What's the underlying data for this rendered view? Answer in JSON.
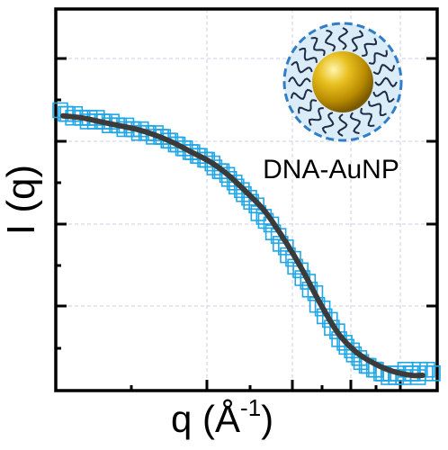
{
  "chart_data": {
    "type": "scatter",
    "xlabel": "q (Å",
    "xlabel_superscript": "-1",
    "xlabel_close": ")",
    "ylabel": "I (q)",
    "tick_labels_shown": false,
    "grid": true,
    "annotation": "DNA-AuNP",
    "series": [
      {
        "kind": "points",
        "marker": "open-square",
        "color": "#22a7e6",
        "x": [
          0.0,
          0.02,
          0.04,
          0.06,
          0.08,
          0.1,
          0.12,
          0.14,
          0.16,
          0.18,
          0.2,
          0.22,
          0.24,
          0.26,
          0.28,
          0.3,
          0.32,
          0.34,
          0.36,
          0.38,
          0.4,
          0.42,
          0.44,
          0.46,
          0.48,
          0.5,
          0.52,
          0.54,
          0.56,
          0.58,
          0.6,
          0.62,
          0.64,
          0.66,
          0.68,
          0.7,
          0.72,
          0.74,
          0.76,
          0.78,
          0.8,
          0.82,
          0.84,
          0.86,
          0.88,
          0.9,
          0.92,
          0.94,
          0.96,
          0.98,
          1.0
        ],
        "y": [
          0.73,
          0.72,
          0.72,
          0.71,
          0.71,
          0.71,
          0.7,
          0.7,
          0.69,
          0.69,
          0.68,
          0.68,
          0.67,
          0.67,
          0.66,
          0.65,
          0.64,
          0.63,
          0.62,
          0.61,
          0.6,
          0.58,
          0.57,
          0.55,
          0.53,
          0.51,
          0.49,
          0.46,
          0.44,
          0.41,
          0.38,
          0.35,
          0.32,
          0.29,
          0.26,
          0.22,
          0.19,
          0.16,
          0.13,
          0.11,
          0.09,
          0.07,
          0.06,
          0.05,
          0.04,
          0.04,
          0.04,
          0.05,
          0.04,
          0.05,
          0.05
        ]
      },
      {
        "kind": "fit-line",
        "color": "#3b3b3b",
        "x": [
          0.0,
          0.05,
          0.1,
          0.15,
          0.2,
          0.25,
          0.3,
          0.35,
          0.4,
          0.45,
          0.5,
          0.55,
          0.6,
          0.65,
          0.7,
          0.75,
          0.8,
          0.85,
          0.9,
          0.95,
          0.98
        ],
        "y": [
          0.72,
          0.715,
          0.705,
          0.695,
          0.685,
          0.67,
          0.65,
          0.625,
          0.6,
          0.565,
          0.52,
          0.47,
          0.4,
          0.32,
          0.23,
          0.15,
          0.1,
          0.07,
          0.05,
          0.04,
          0.04
        ]
      }
    ],
    "xlim": [
      0,
      1
    ],
    "ylim": [
      0,
      1
    ]
  },
  "colors": {
    "marker": "#22a7e6",
    "fit_line": "#3b3b3b",
    "grid": "#c9cfe6",
    "particle_gold": "#d4a300",
    "shell": "#cfe6f6",
    "shell_border": "#2f7ec7"
  }
}
